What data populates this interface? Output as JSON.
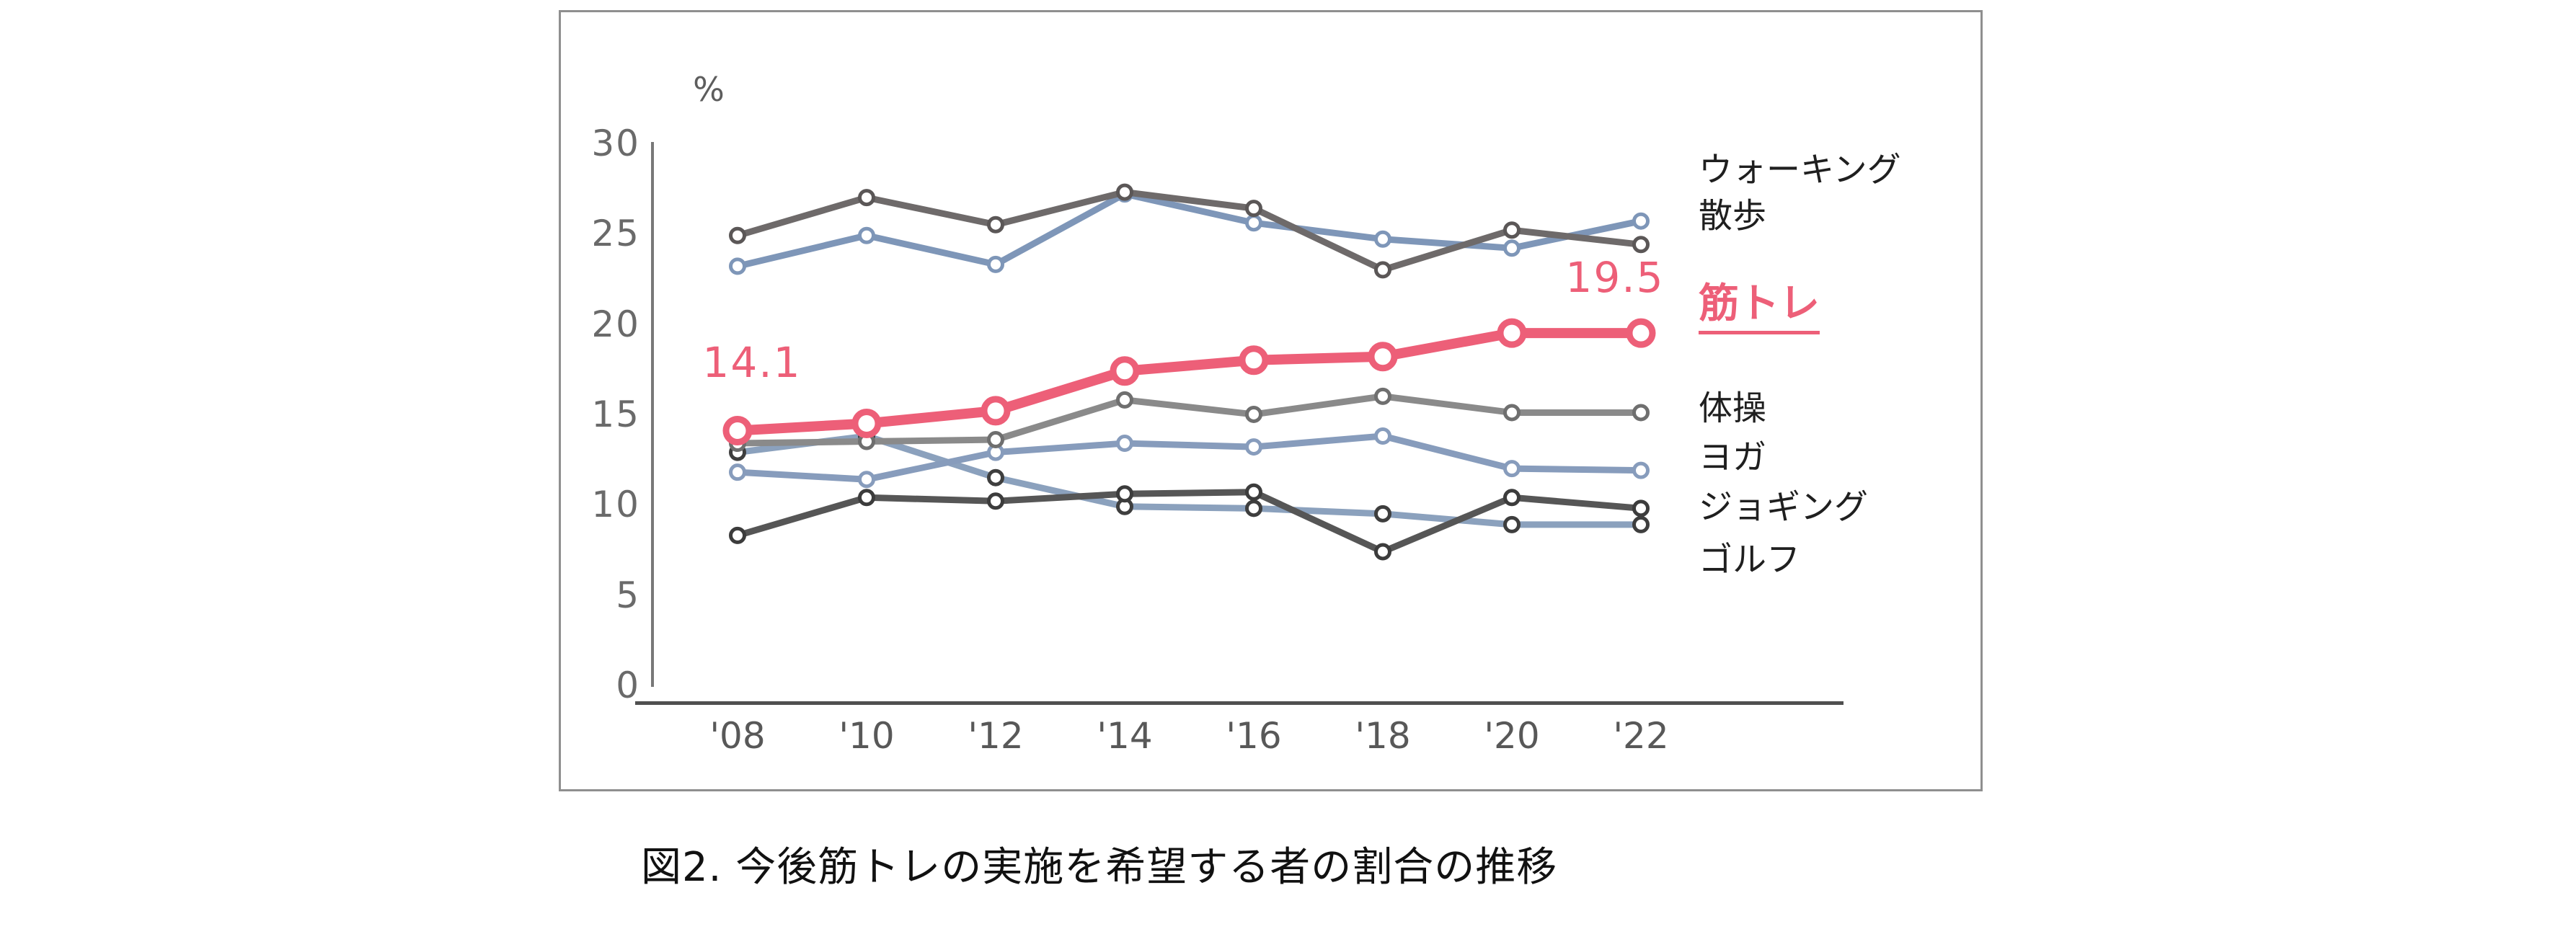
{
  "caption": "図2. 今後筋トレの実施を希望する者の割合の推移",
  "annotations": [
    {
      "text": "14.1",
      "series": "筋トレ",
      "point": "'08"
    },
    {
      "text": "19.5",
      "series": "筋トレ",
      "point": "'22"
    }
  ],
  "accent_color": "#ed5f78",
  "chart_data": {
    "type": "line",
    "title": "",
    "xlabel": "",
    "ylabel": "%",
    "ylim": [
      0,
      30
    ],
    "yticks": [
      30,
      25,
      20,
      15,
      10,
      5,
      0
    ],
    "x": [
      "'08",
      "'10",
      "'12",
      "'14",
      "'16",
      "'18",
      "'20",
      "'22"
    ],
    "grid": false,
    "legend_position": "right",
    "series": [
      {
        "name": "ウォーキング",
        "color": "#6e6a6a",
        "marker_color": "#5b5757",
        "emphasized": false,
        "values": [
          24.9,
          27.0,
          25.5,
          27.3,
          26.4,
          23.0,
          25.2,
          24.4
        ]
      },
      {
        "name": "散歩",
        "color": "#7e96b8",
        "marker_color": "#7e96b8",
        "emphasized": false,
        "values": [
          23.2,
          24.9,
          23.3,
          27.2,
          25.6,
          24.7,
          24.2,
          25.7
        ]
      },
      {
        "name": "筋トレ",
        "color": "#ed5f78",
        "marker_color": "#ed5f78",
        "emphasized": true,
        "values": [
          14.1,
          14.5,
          15.2,
          17.4,
          18.0,
          18.2,
          19.5,
          19.5
        ]
      },
      {
        "name": "体操",
        "color": "#8a8a8a",
        "marker_color": "#6f6f6f",
        "emphasized": false,
        "values": [
          13.4,
          13.5,
          13.6,
          15.8,
          15.0,
          16.0,
          15.1,
          15.1
        ]
      },
      {
        "name": "ヨガ",
        "color": "#879cbc",
        "marker_color": "#879cbc",
        "emphasized": false,
        "values": [
          11.8,
          11.4,
          12.9,
          13.4,
          13.2,
          13.8,
          12.0,
          11.9
        ]
      },
      {
        "name": "ジョギング",
        "color": "#565656",
        "marker_color": "#3c3c3c",
        "emphasized": false,
        "values": [
          8.3,
          10.4,
          10.2,
          10.6,
          10.7,
          7.4,
          10.4,
          9.8
        ]
      },
      {
        "name": "ゴルフ",
        "color": "#8ba1bd",
        "marker_color": "#3e3e3e",
        "emphasized": false,
        "values": [
          12.9,
          13.8,
          11.5,
          9.9,
          9.8,
          9.5,
          8.9,
          8.9
        ]
      }
    ]
  }
}
